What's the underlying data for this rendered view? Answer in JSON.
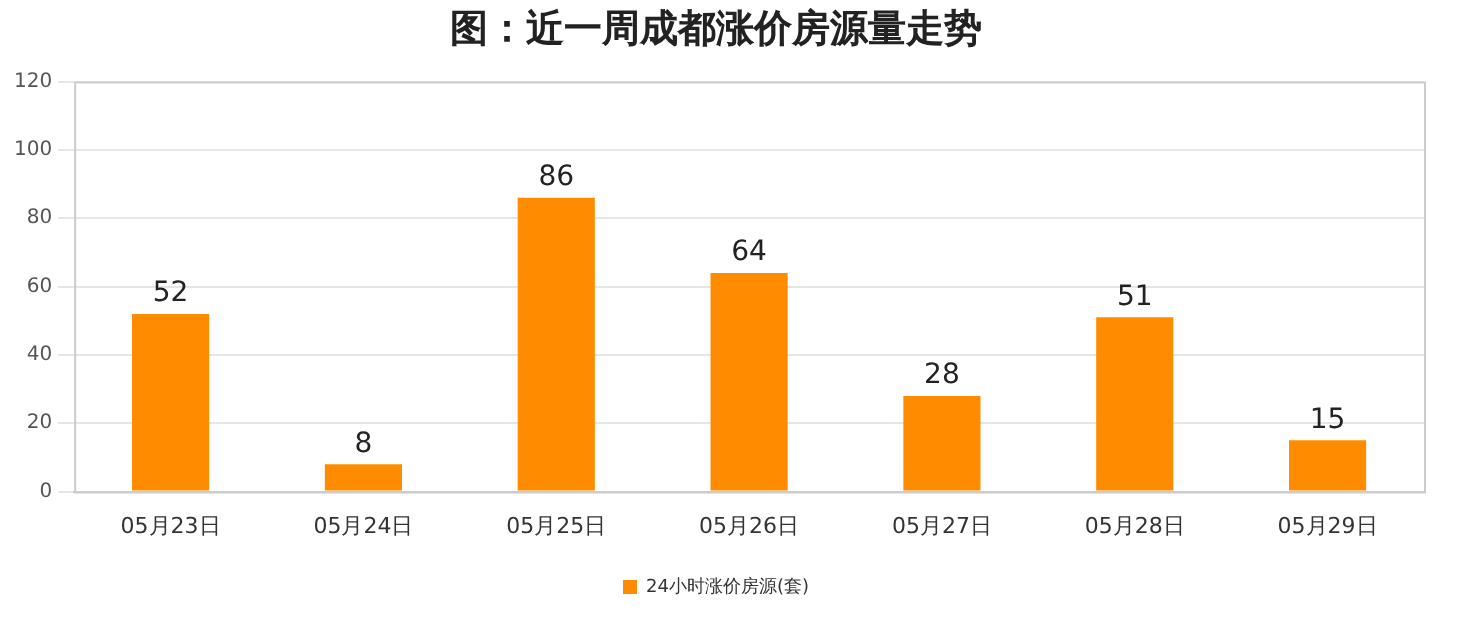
{
  "chart_data": {
    "type": "bar",
    "title": "图：近一周成都涨价房源量走势",
    "categories": [
      "05月23日",
      "05月24日",
      "05月25日",
      "05月26日",
      "05月27日",
      "05月28日",
      "05月29日"
    ],
    "series": [
      {
        "name": "24小时涨价房源(套)",
        "color": "#ff8c00",
        "values": [
          52,
          8,
          86,
          64,
          28,
          51,
          15
        ]
      }
    ],
    "ylim": [
      0,
      120
    ],
    "yticks": [
      0,
      20,
      40,
      60,
      80,
      100,
      120
    ],
    "grid": "y",
    "legend": "bottom",
    "data_labels": true
  }
}
